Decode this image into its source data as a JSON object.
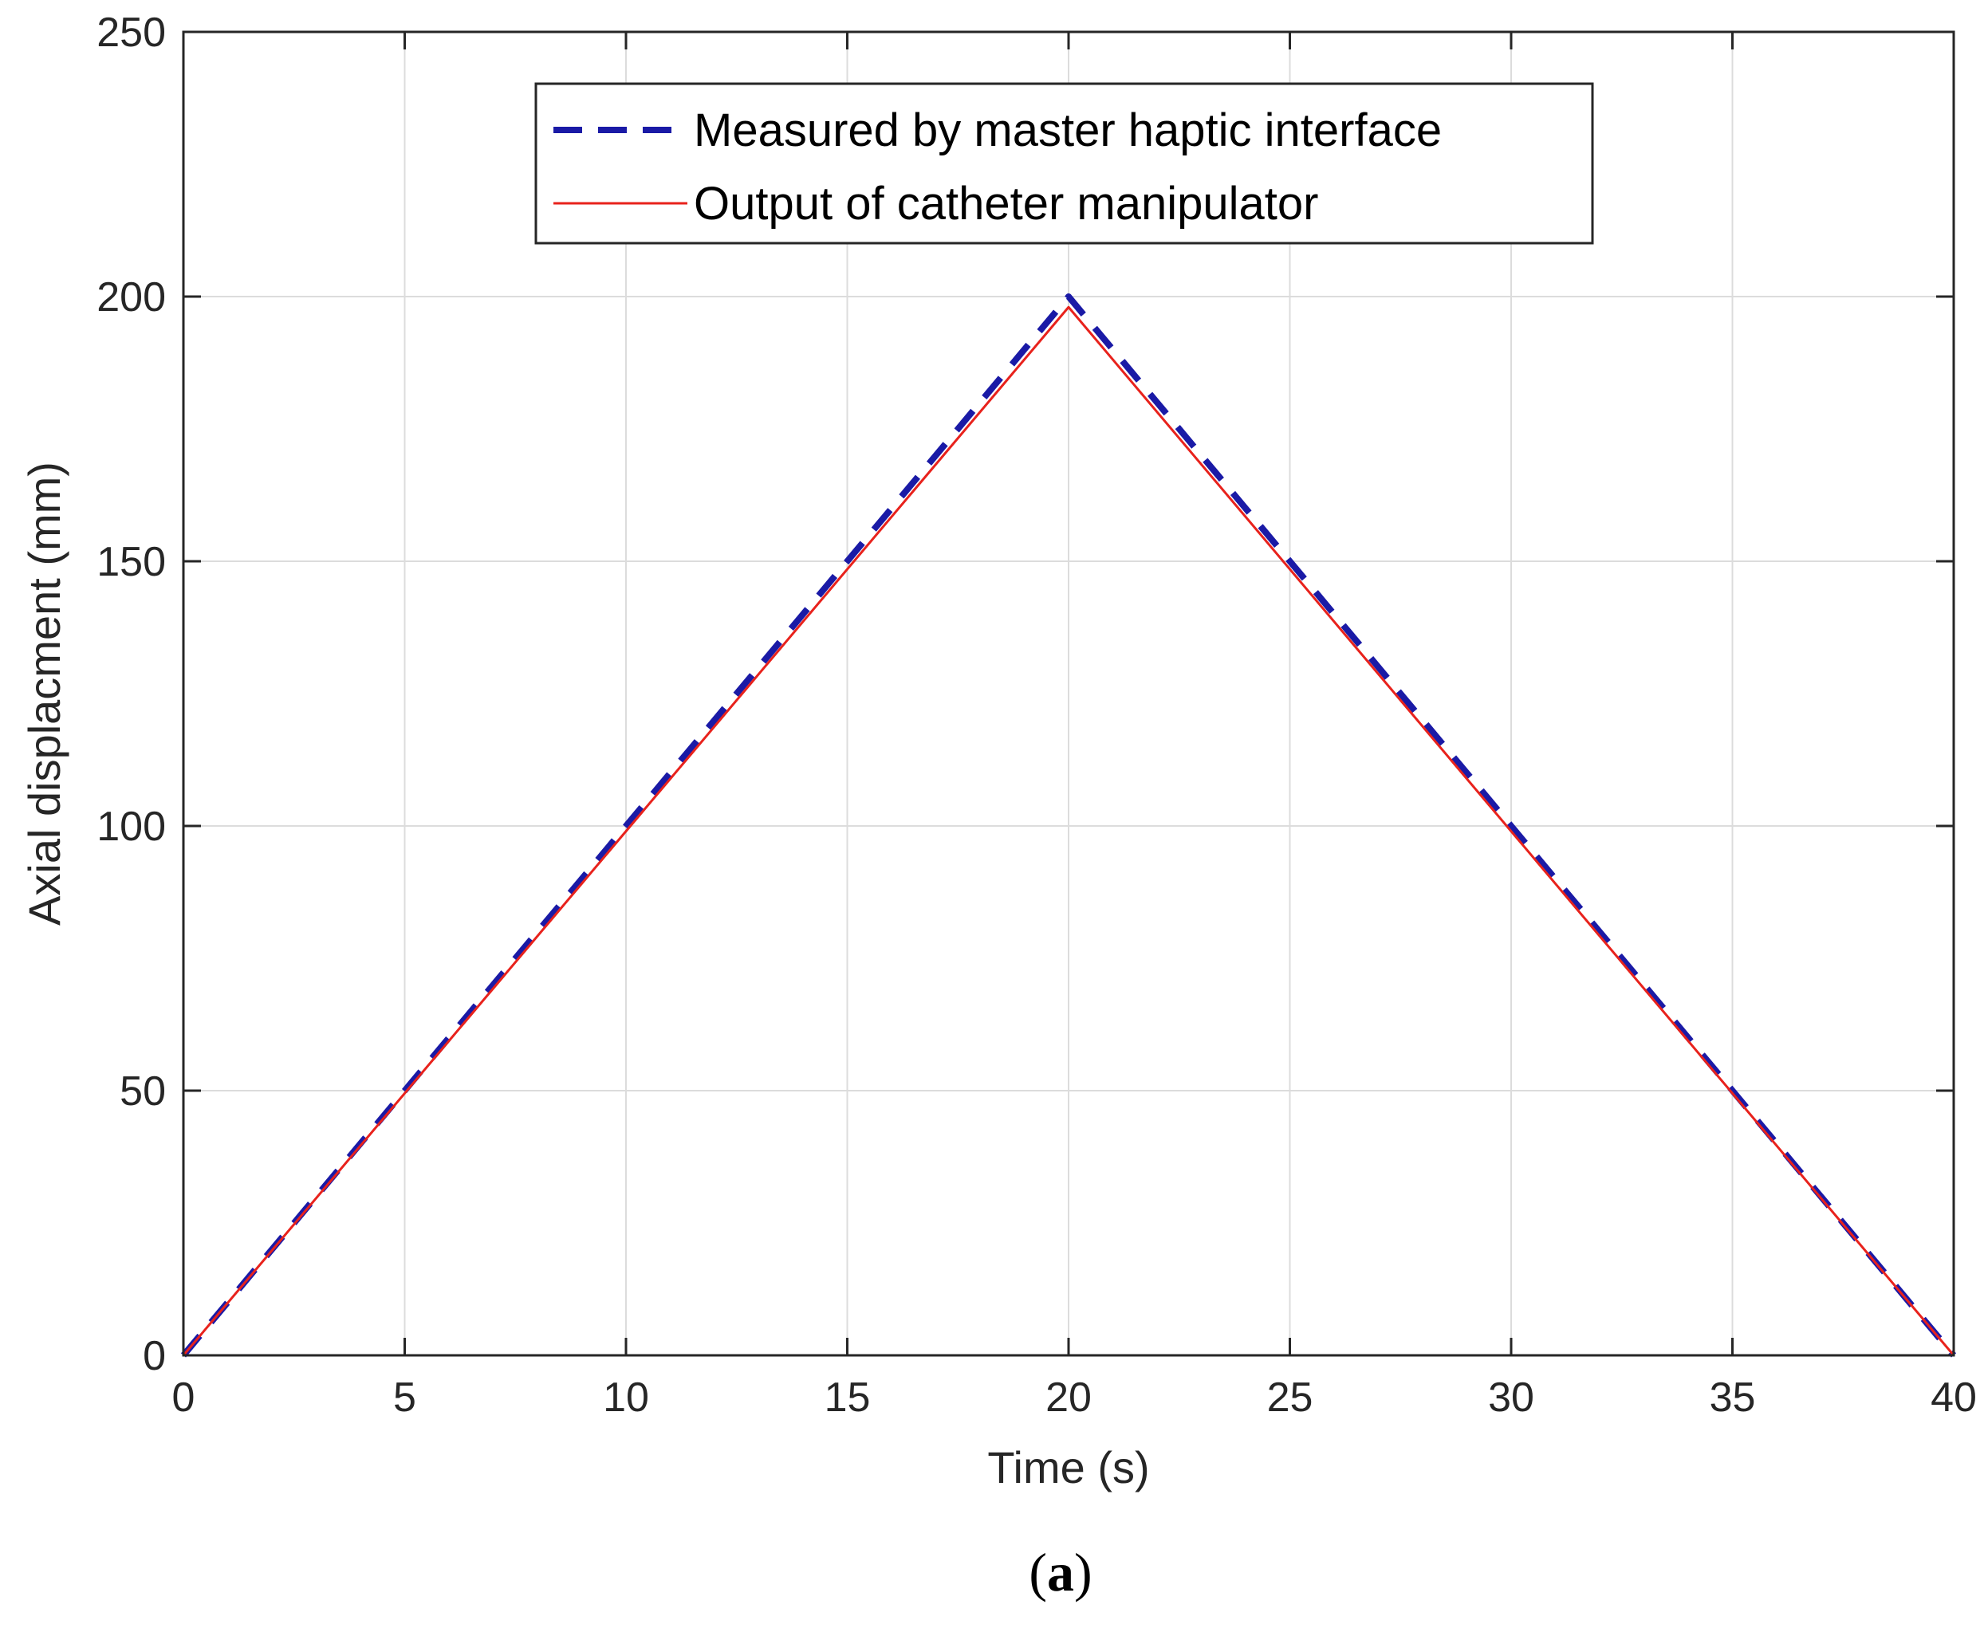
{
  "chart_data": {
    "type": "line",
    "xlabel": "Time (s)",
    "ylabel": "Axial displacment (mm)",
    "xlim": [
      0,
      40
    ],
    "ylim": [
      0,
      250
    ],
    "x_ticks": [
      0,
      5,
      10,
      15,
      20,
      25,
      30,
      35,
      40
    ],
    "y_ticks": [
      0,
      50,
      100,
      150,
      200,
      250
    ],
    "grid": true,
    "legend_position": "top-center",
    "series": [
      {
        "name": "Measured by master haptic interface",
        "style": "dashed",
        "color": "#1a1aa6",
        "x": [
          0,
          20,
          40
        ],
        "y": [
          0,
          200,
          0
        ]
      },
      {
        "name": "Output of catheter manipulator",
        "style": "solid",
        "color": "#e8221c",
        "x": [
          0,
          20,
          40
        ],
        "y": [
          0,
          198,
          0
        ]
      }
    ]
  },
  "caption": {
    "open": "(",
    "letter": "a",
    "close": ")"
  }
}
